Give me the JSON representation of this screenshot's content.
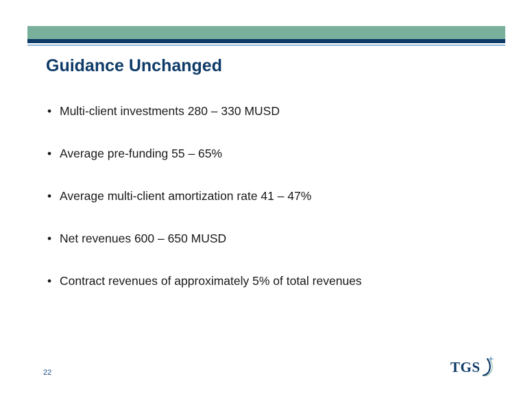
{
  "slide": {
    "title": "Guidance Unchanged",
    "bullets": [
      "Multi-client investments  280 – 330 MUSD",
      "Average pre-funding 55 – 65%",
      "Average multi-client amortization rate 41 – 47%",
      "Net revenues  600 – 650 MUSD",
      "Contract revenues of approximately 5% of total revenues"
    ],
    "page_number": "22",
    "logo_text": "TGS",
    "bullet_char": "•"
  },
  "colors": {
    "header_green": "#79b09b",
    "header_navy": "#0f3b68",
    "title": "#0f3b68",
    "text": "#1a1a1a"
  },
  "icons": {
    "logo": "tgs-logo-swoosh"
  }
}
